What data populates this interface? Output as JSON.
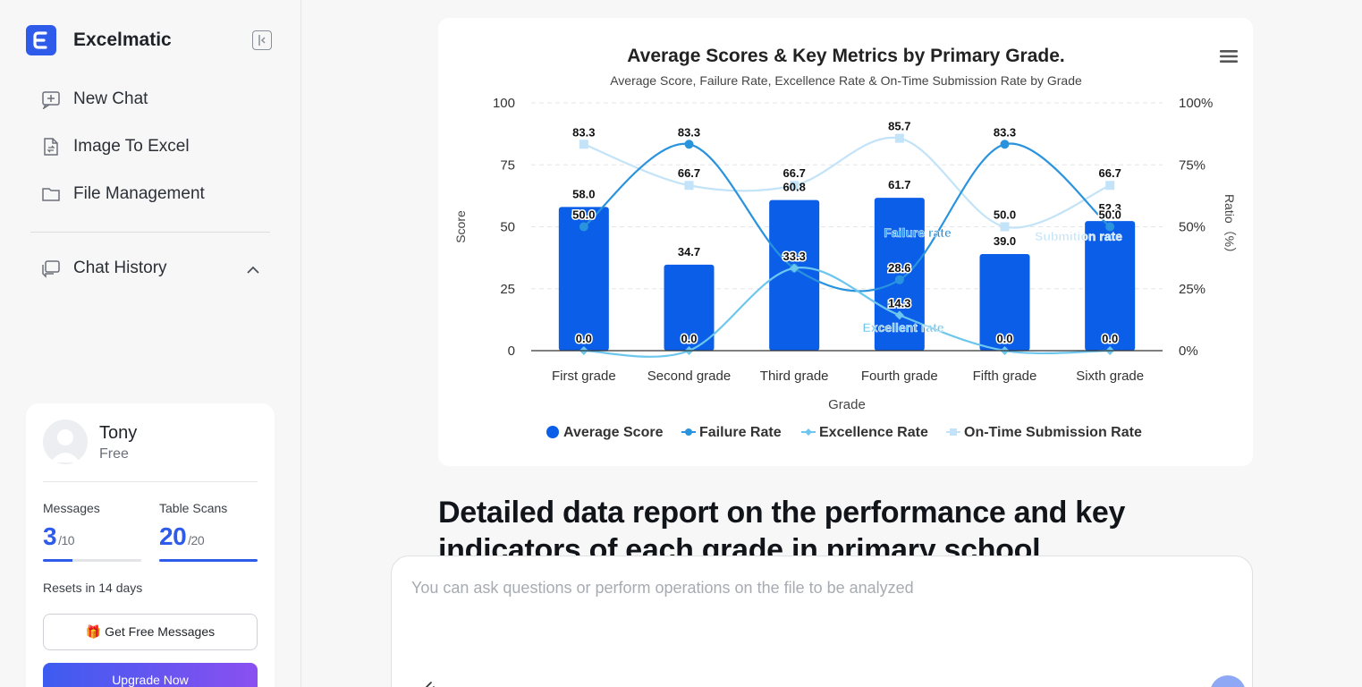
{
  "app": {
    "name": "Excelmatic",
    "logo_letter": "E"
  },
  "sidebar": {
    "items": [
      {
        "label": "New Chat",
        "icon": "new-chat-icon"
      },
      {
        "label": "Image To Excel",
        "icon": "image-to-excel-icon"
      },
      {
        "label": "File Management",
        "icon": "folder-icon"
      }
    ],
    "history_label": "Chat History"
  },
  "user": {
    "name": "Tony",
    "plan": "Free",
    "messages": {
      "label": "Messages",
      "used": "3",
      "total": "/10",
      "fraction": 0.3
    },
    "table_scans": {
      "label": "Table Scans",
      "used": "20",
      "total": "/20",
      "fraction": 1.0
    },
    "resets": "Resets in 14 days",
    "free_button": "🎁 Get Free Messages",
    "upgrade_button": "Upgrade Now"
  },
  "chart_data": {
    "type": "bar",
    "title": "Average Scores & Key Metrics by Primary Grade.",
    "subtitle": "Average Score, Failure Rate, Excellence Rate & On-Time Submission Rate by Grade",
    "xlabel": "Grade",
    "ylabel": "Score",
    "y2label": "Ratio（%）",
    "ylim": [
      0,
      100
    ],
    "y2lim": [
      0,
      100
    ],
    "yticks": [
      "0",
      "25",
      "50",
      "75",
      "100"
    ],
    "y2ticks": [
      "0%",
      "25%",
      "50%",
      "75%",
      "100%"
    ],
    "categories": [
      "First grade",
      "Second grade",
      "Third grade",
      "Fourth grade",
      "Fifth grade",
      "Sixth grade"
    ],
    "series": [
      {
        "name": "Average Score",
        "type": "bar",
        "axis": "left",
        "color": "#0b5ee8",
        "values": [
          58.0,
          34.7,
          60.8,
          61.7,
          39.0,
          52.3
        ]
      },
      {
        "name": "Failure Rate",
        "type": "line",
        "axis": "right",
        "color": "#2a93dd",
        "values": [
          50.0,
          83.3,
          33.3,
          28.6,
          83.3,
          50.0
        ],
        "annotation": "Failure rate"
      },
      {
        "name": "Excellence Rate",
        "type": "line",
        "axis": "right",
        "color": "#6cc6ee",
        "values": [
          0.0,
          0.0,
          33.3,
          14.3,
          0.0,
          0.0
        ],
        "annotation": "Excellent rate"
      },
      {
        "name": "On-Time Submission Rate",
        "type": "line",
        "axis": "right",
        "color": "#c3e3f8",
        "values": [
          83.3,
          66.7,
          66.7,
          85.7,
          50.0,
          66.7
        ],
        "annotation": "Submition rate"
      }
    ],
    "legend_position": "bottom",
    "grid": true
  },
  "report_title": "Detailed data report on the performance and key indicators of each grade in primary school",
  "composer": {
    "placeholder": "You can ask questions or perform operations on the file to be analyzed"
  }
}
